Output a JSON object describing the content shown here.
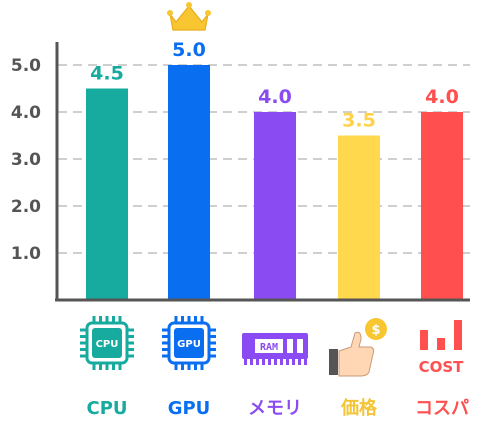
{
  "chart_data": {
    "type": "bar",
    "title": "",
    "xlabel": "",
    "ylabel": "",
    "ylim": [
      0,
      5.5
    ],
    "y_ticks": [
      "1.0",
      "2.0",
      "3.0",
      "4.0",
      "5.0"
    ],
    "grid": "horizontal-dashed",
    "categories": [
      "CPU",
      "GPU",
      "メモリ",
      "価格",
      "コスパ"
    ],
    "values": [
      4.5,
      5.0,
      4.0,
      3.5,
      4.0
    ],
    "value_labels": [
      "4.5",
      "5.0",
      "4.0",
      "3.5",
      "4.0"
    ],
    "colors": [
      "#17ab9f",
      "#0a6ef0",
      "#8a4cf2",
      "#ffd84d",
      "#ff4f4f"
    ],
    "value_label_colors": [
      "#17ab9f",
      "#0a6ef0",
      "#8a4cf2",
      "#ffd24a",
      "#ff4f4f"
    ],
    "icons": [
      "cpu-chip-icon",
      "gpu-chip-icon",
      "ram-module-icon",
      "price-thumbs-up-coin-icon",
      "cost-bar-chart-icon"
    ],
    "icon_texts": [
      "CPU",
      "GPU",
      "RAM",
      "$",
      "COST"
    ],
    "highlight": {
      "category": "GPU",
      "icon": "crown-icon"
    }
  }
}
